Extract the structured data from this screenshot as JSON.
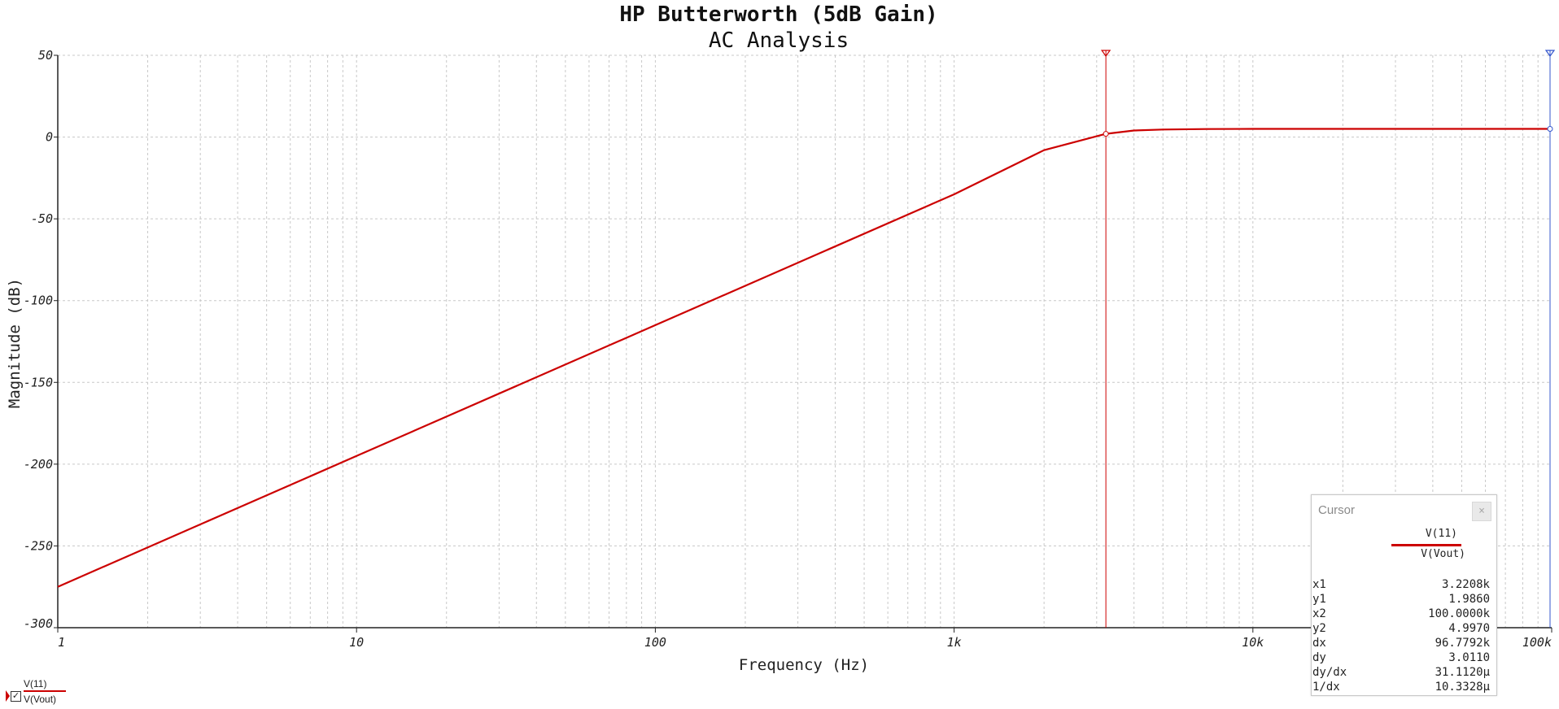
{
  "chart_data": {
    "type": "line",
    "title": "HP Butterworth (5dB Gain)",
    "subtitle": "AC Analysis",
    "xlabel": "Frequency (Hz)",
    "ylabel": "Magnitude (dB)",
    "xscale": "log",
    "xlim": [
      1,
      100000
    ],
    "ylim": [
      -300,
      50
    ],
    "grid": true,
    "x_ticks": [
      {
        "value": 1,
        "label": "1"
      },
      {
        "value": 10,
        "label": "10"
      },
      {
        "value": 100,
        "label": "100"
      },
      {
        "value": 1000,
        "label": "1k"
      },
      {
        "value": 10000,
        "label": "10k"
      },
      {
        "value": 100000,
        "label": "100k"
      }
    ],
    "y_ticks": [
      {
        "value": 50,
        "label": "50"
      },
      {
        "value": 0,
        "label": "0"
      },
      {
        "value": -50,
        "label": "-50"
      },
      {
        "value": -100,
        "label": "-100"
      },
      {
        "value": -150,
        "label": "-150"
      },
      {
        "value": -200,
        "label": "-200"
      },
      {
        "value": -250,
        "label": "-250"
      },
      {
        "value": -300,
        "label": "-300"
      }
    ],
    "series": [
      {
        "name": "V(Vout)",
        "color": "#cc0000",
        "x": [
          1,
          10,
          100,
          1000,
          2000,
          3000,
          3221,
          4000,
          5000,
          7000,
          10000,
          100000
        ],
        "y": [
          -275,
          -195,
          -115,
          -35,
          -8,
          0.5,
          1.986,
          4.0,
          4.6,
          4.9,
          4.99,
          4.997
        ]
      }
    ],
    "cursors": [
      {
        "name": "cursor-1",
        "x": 3220.8,
        "y": 1.986,
        "color": "#cc0000"
      },
      {
        "name": "cursor-2",
        "x": 100000,
        "y": 4.997,
        "color": "#3355cc"
      }
    ]
  },
  "cursor_panel": {
    "title": "Cursor",
    "close_glyph": "×",
    "signal_1": "V(11)",
    "signal_2": "V(Vout)",
    "rows": [
      {
        "key": "x1",
        "value": "3.2208k"
      },
      {
        "key": "y1",
        "value": "1.9860"
      },
      {
        "key": "x2",
        "value": "100.0000k"
      },
      {
        "key": "y2",
        "value": "4.9970"
      },
      {
        "key": "dx",
        "value": "96.7792k"
      },
      {
        "key": "dy",
        "value": "3.0110"
      },
      {
        "key": "dy/dx",
        "value": "31.1120μ"
      },
      {
        "key": "1/dx",
        "value": "10.3328μ"
      }
    ]
  },
  "legend": {
    "signal_1": "V(11)",
    "signal_2": "V(Vout)",
    "check_glyph": "✓"
  }
}
